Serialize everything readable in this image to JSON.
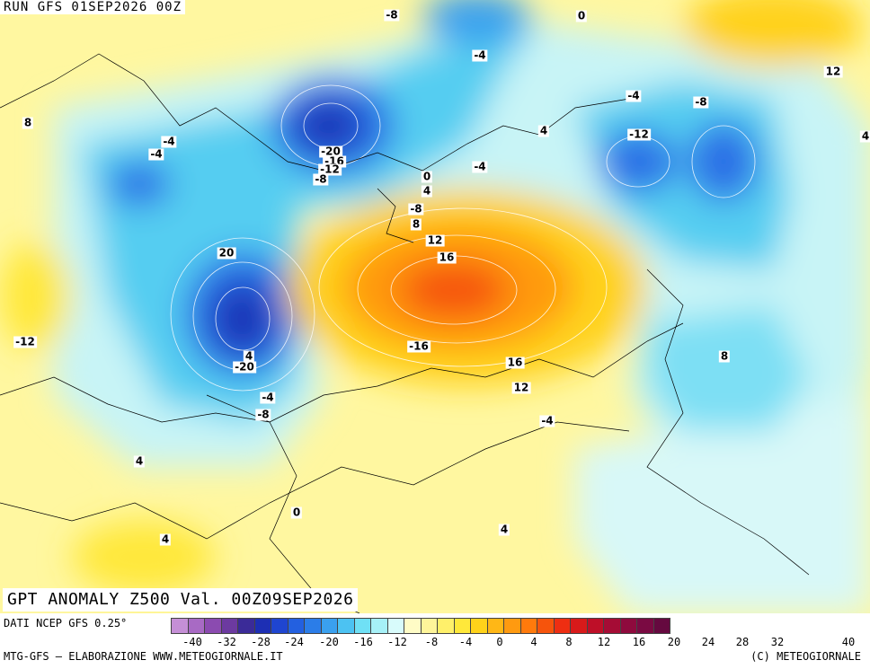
{
  "header": {
    "run": "RUN GFS 01SEP2026 00Z"
  },
  "title": "GPT ANOMALY Z500 Val. 00Z09SEP2026",
  "source": "DATI NCEP GFS 0.25°",
  "credit": "MTG-GFS – ELABORAZIONE WWW.METEOGIORNALE.IT",
  "copyright": "(C) METEOGIORNALE",
  "legend": {
    "colors": [
      "#c58fd6",
      "#a86ac4",
      "#8b4bb0",
      "#6c3aa0",
      "#3b2b98",
      "#1d2fb4",
      "#1f45d0",
      "#2360e0",
      "#2b7de8",
      "#3aa0ee",
      "#4cc2f2",
      "#6fe0f5",
      "#a6f0f7",
      "#d8fbfb",
      "#fffcc6",
      "#fff59a",
      "#fff06a",
      "#ffe83a",
      "#ffd21a",
      "#ffb716",
      "#ff9a10",
      "#ff7a0c",
      "#f6540c",
      "#ee2e12",
      "#d81a1a",
      "#be0f28",
      "#a50c35",
      "#8e0a3d",
      "#7a0a42",
      "#65093f"
    ],
    "ticks": [
      "-40",
      "-32",
      "-28",
      "-24",
      "-20",
      "-16",
      "-12",
      "-8",
      "-4",
      "0",
      "4",
      "8",
      "12",
      "16",
      "20",
      "24",
      "28",
      "32",
      "40"
    ]
  },
  "contour_labels": [
    "-8",
    "0",
    "-4",
    "4",
    "-4",
    "12",
    "8",
    "-8",
    "-4",
    "-12",
    "-20",
    "-16",
    "-12",
    "-8",
    "0",
    "4",
    "-4",
    "-4",
    "-8",
    "8",
    "12",
    "16",
    "20",
    "-12",
    "4",
    "-20",
    "-16",
    "16",
    "12",
    "8",
    "-4",
    "-8",
    "-4",
    "4",
    "0",
    "4",
    "4",
    "4"
  ]
}
